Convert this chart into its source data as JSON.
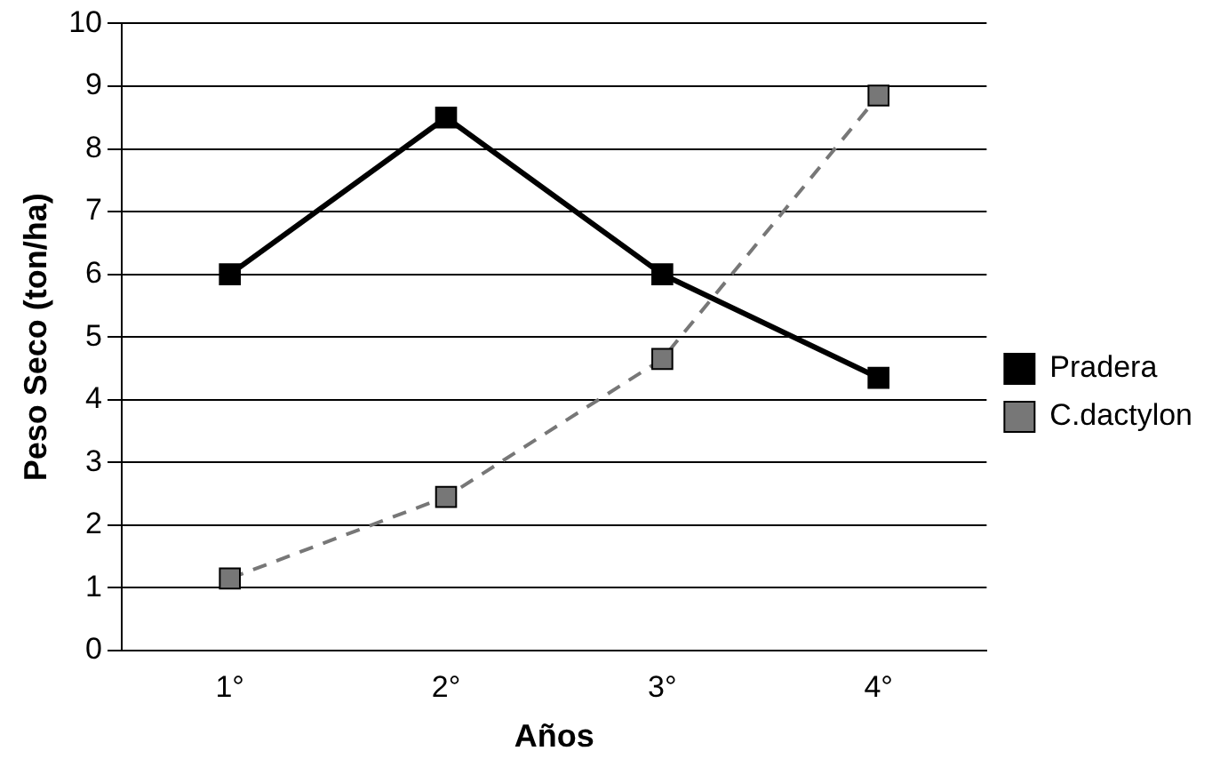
{
  "chart_data": {
    "type": "line",
    "xlabel": "Años",
    "ylabel": "Peso Seco (ton/ha)",
    "categories": [
      "1°",
      "2°",
      "3°",
      "4°"
    ],
    "series": [
      {
        "name": "Pradera",
        "color": "#000000",
        "values": [
          6,
          8.5,
          6,
          4.35
        ],
        "line_style": "solid"
      },
      {
        "name": "C.dactylon",
        "color": "#777777",
        "values": [
          1.15,
          2.45,
          4.65,
          8.85
        ],
        "line_style": "dashed"
      }
    ],
    "ylim": [
      0,
      10
    ],
    "yticks": [
      0,
      1,
      2,
      3,
      4,
      5,
      6,
      7,
      8,
      9,
      10
    ],
    "grid": "y",
    "legend": "right",
    "marker": "square"
  }
}
